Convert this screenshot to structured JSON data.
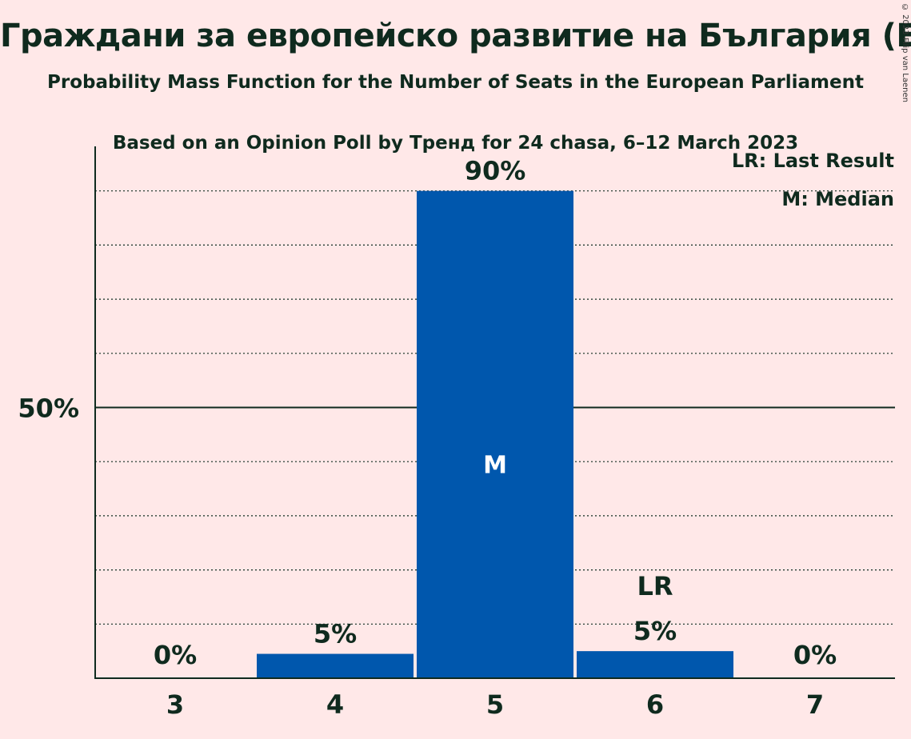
{
  "title": "Граждани за европейско развитие на България (EPP)",
  "subtitle1": "Probability Mass Function for the Number of Seats in the European Parliament",
  "subtitle2": "Based on an Opinion Poll by Тренд for 24 chasa, 6–12 March 2023",
  "copyright": "© 2023 Filip van Laenen",
  "legend": {
    "lr": "LR: Last Result",
    "median": "M: Median"
  },
  "colors": {
    "background": "#FFE8E8",
    "bar": "#0057AD",
    "text": "#0f2a1e"
  },
  "chart_data": {
    "type": "bar",
    "categories": [
      "3",
      "4",
      "5",
      "6",
      "7"
    ],
    "values": [
      0,
      4.5,
      90,
      5,
      0
    ],
    "value_labels": [
      "0%",
      "5%",
      "90%",
      "5%",
      "0%"
    ],
    "ylim": [
      0,
      100
    ],
    "ytick_label": "50%",
    "ytick_value": 50,
    "gridlines": [
      10,
      20,
      30,
      40,
      60,
      70,
      80,
      90
    ],
    "median_category": "5",
    "median_marker": "M",
    "last_result_category": "6",
    "last_result_marker": "LR",
    "legend_position": "top-right"
  }
}
